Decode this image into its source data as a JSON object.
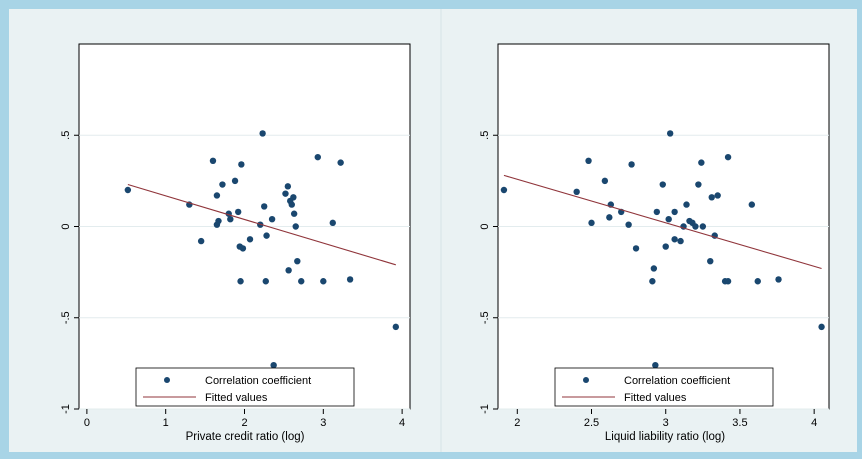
{
  "colors": {
    "outer_border": "#a8d4e6",
    "panel_bg": "#eaf2f3",
    "plot_bg": "#ffffff",
    "grid": "#e3ecee",
    "marker": "#1a476f",
    "fit_line": "#90353b"
  },
  "chart_data": [
    {
      "type": "scatter",
      "title": "",
      "xlabel": "Private credit ratio (log)",
      "ylabel": "",
      "xlim": [
        -0.1,
        4.1
      ],
      "ylim": [
        -1.0,
        1.0
      ],
      "xticks": [
        0,
        1,
        2,
        3,
        4
      ],
      "xtick_labels": [
        "0",
        "1",
        "2",
        "3",
        "4"
      ],
      "yticks": [
        -1,
        -0.5,
        0,
        0.5
      ],
      "ytick_labels": [
        "-1",
        "-.5",
        "0",
        ".5"
      ],
      "legend": [
        "Correlation coefficient",
        "Fitted values"
      ],
      "legend_position": "bottom",
      "grid": true,
      "series": [
        {
          "name": "Correlation coefficient",
          "points": [
            [
              0.52,
              0.2
            ],
            [
              1.3,
              0.12
            ],
            [
              1.45,
              -0.08
            ],
            [
              1.6,
              0.36
            ],
            [
              1.65,
              0.17
            ],
            [
              1.65,
              0.01
            ],
            [
              1.67,
              0.03
            ],
            [
              1.72,
              0.23
            ],
            [
              1.8,
              0.07
            ],
            [
              1.82,
              0.04
            ],
            [
              1.88,
              0.25
            ],
            [
              1.92,
              0.08
            ],
            [
              1.94,
              -0.11
            ],
            [
              1.95,
              -0.3
            ],
            [
              1.96,
              0.34
            ],
            [
              1.98,
              -0.12
            ],
            [
              2.07,
              -0.07
            ],
            [
              2.2,
              0.01
            ],
            [
              2.23,
              0.51
            ],
            [
              2.25,
              0.11
            ],
            [
              2.27,
              -0.3
            ],
            [
              2.28,
              -0.05
            ],
            [
              2.35,
              0.04
            ],
            [
              2.37,
              -0.76
            ],
            [
              2.52,
              0.18
            ],
            [
              2.55,
              0.22
            ],
            [
              2.56,
              -0.24
            ],
            [
              2.58,
              0.14
            ],
            [
              2.6,
              0.12
            ],
            [
              2.62,
              0.16
            ],
            [
              2.63,
              0.07
            ],
            [
              2.65,
              0.0
            ],
            [
              2.67,
              -0.19
            ],
            [
              2.72,
              -0.3
            ],
            [
              2.93,
              0.38
            ],
            [
              3.0,
              -0.3
            ],
            [
              3.12,
              0.02
            ],
            [
              3.22,
              0.35
            ],
            [
              3.34,
              -0.29
            ],
            [
              3.92,
              -0.55
            ]
          ]
        },
        {
          "name": "Fitted values",
          "line": [
            [
              0.52,
              0.23
            ],
            [
              3.92,
              -0.21
            ]
          ]
        }
      ]
    },
    {
      "type": "scatter",
      "title": "",
      "xlabel": "Liquid liability ratio (log)",
      "ylabel": "",
      "xlim": [
        1.87,
        4.1
      ],
      "ylim": [
        -1.0,
        1.0
      ],
      "xticks": [
        2,
        2.5,
        3,
        3.5,
        4
      ],
      "xtick_labels": [
        "2",
        "2.5",
        "3",
        "3.5",
        "4"
      ],
      "yticks": [
        -1,
        -0.5,
        0,
        0.5
      ],
      "ytick_labels": [
        "-1",
        "-.5",
        "0",
        ".5"
      ],
      "legend": [
        "Correlation coefficient",
        "Fitted values"
      ],
      "legend_position": "bottom",
      "grid": true,
      "series": [
        {
          "name": "Correlation coefficient",
          "points": [
            [
              1.91,
              0.2
            ],
            [
              2.4,
              0.19
            ],
            [
              2.48,
              0.36
            ],
            [
              2.5,
              0.02
            ],
            [
              2.59,
              0.25
            ],
            [
              2.62,
              0.05
            ],
            [
              2.63,
              0.12
            ],
            [
              2.7,
              0.08
            ],
            [
              2.75,
              0.01
            ],
            [
              2.77,
              0.34
            ],
            [
              2.8,
              -0.12
            ],
            [
              2.91,
              -0.3
            ],
            [
              2.92,
              -0.23
            ],
            [
              2.93,
              -0.76
            ],
            [
              2.94,
              0.08
            ],
            [
              2.98,
              0.23
            ],
            [
              3.0,
              -0.11
            ],
            [
              3.02,
              0.04
            ],
            [
              3.03,
              0.51
            ],
            [
              3.06,
              0.08
            ],
            [
              3.06,
              -0.07
            ],
            [
              3.1,
              -0.08
            ],
            [
              3.12,
              0.0
            ],
            [
              3.14,
              0.12
            ],
            [
              3.16,
              0.03
            ],
            [
              3.18,
              0.02
            ],
            [
              3.2,
              0.0
            ],
            [
              3.22,
              0.23
            ],
            [
              3.24,
              0.35
            ],
            [
              3.25,
              0.0
            ],
            [
              3.3,
              -0.19
            ],
            [
              3.31,
              0.16
            ],
            [
              3.33,
              -0.05
            ],
            [
              3.35,
              0.17
            ],
            [
              3.4,
              -0.3
            ],
            [
              3.42,
              0.38
            ],
            [
              3.42,
              -0.3
            ],
            [
              3.58,
              0.12
            ],
            [
              3.62,
              -0.3
            ],
            [
              3.76,
              -0.29
            ],
            [
              4.05,
              -0.55
            ]
          ]
        },
        {
          "name": "Fitted values",
          "line": [
            [
              1.91,
              0.28
            ],
            [
              4.05,
              -0.23
            ]
          ]
        }
      ]
    }
  ]
}
